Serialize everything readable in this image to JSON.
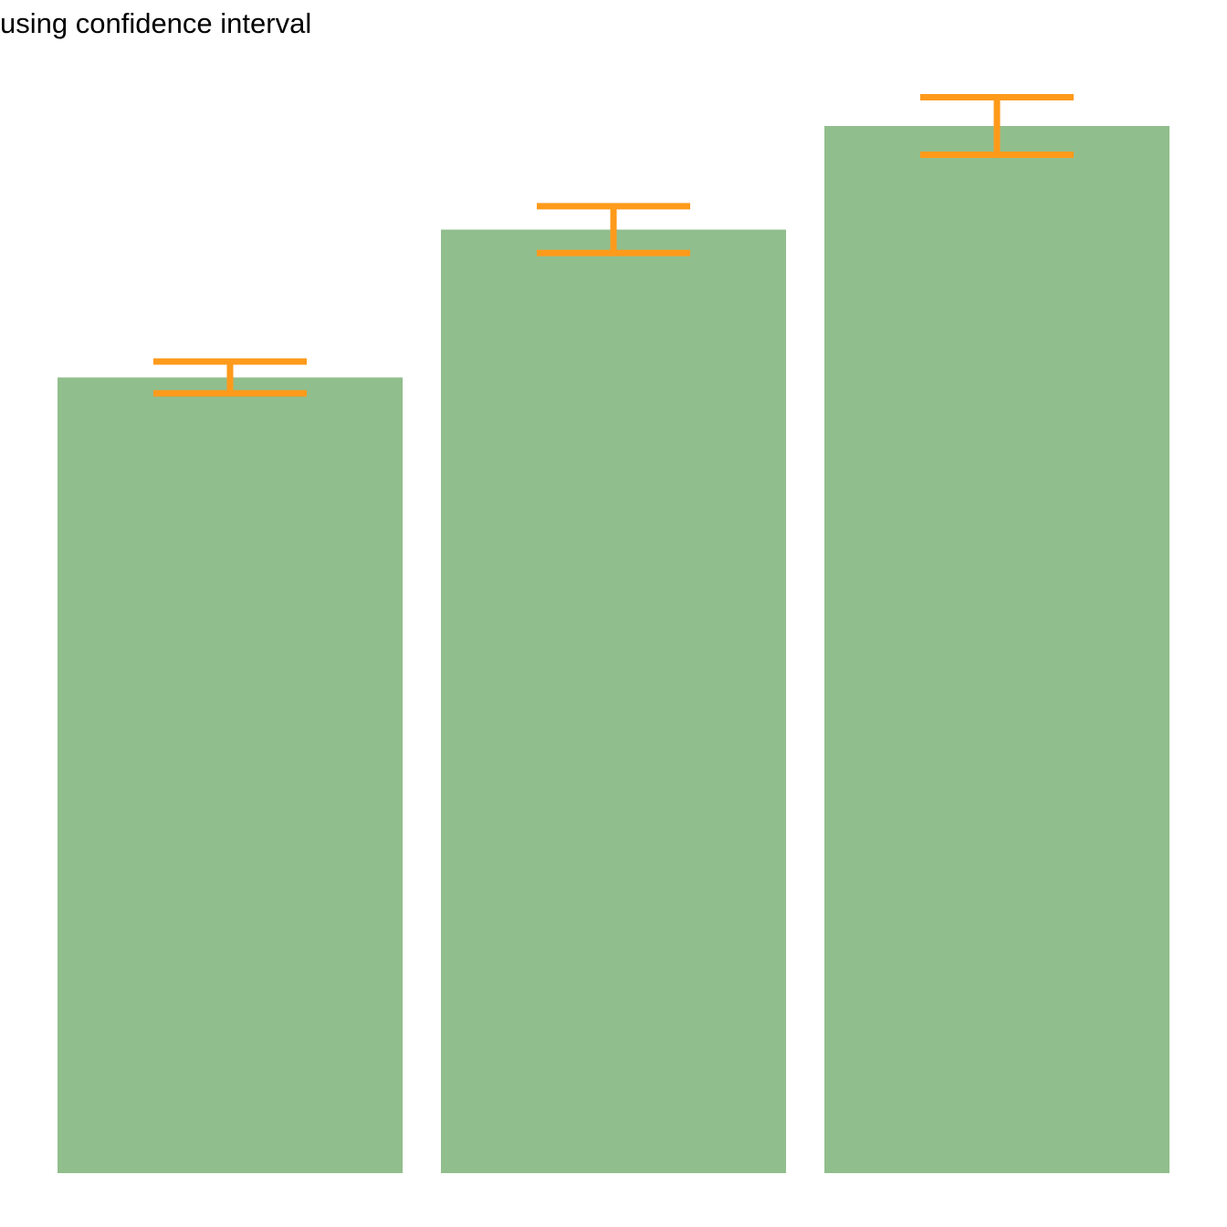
{
  "chart_data": {
    "type": "bar",
    "title": "using confidence interval",
    "xlabel": "",
    "ylabel": "",
    "values": [
      5.006,
      5.936,
      6.588
    ],
    "error": [
      0.1,
      0.147,
      0.181
    ],
    "ylim": [
      0,
      6.588
    ],
    "grid": false,
    "axes_visible": false,
    "colors": {
      "bar": "#91BE8D",
      "error_bar": "#FF9A1A"
    }
  }
}
